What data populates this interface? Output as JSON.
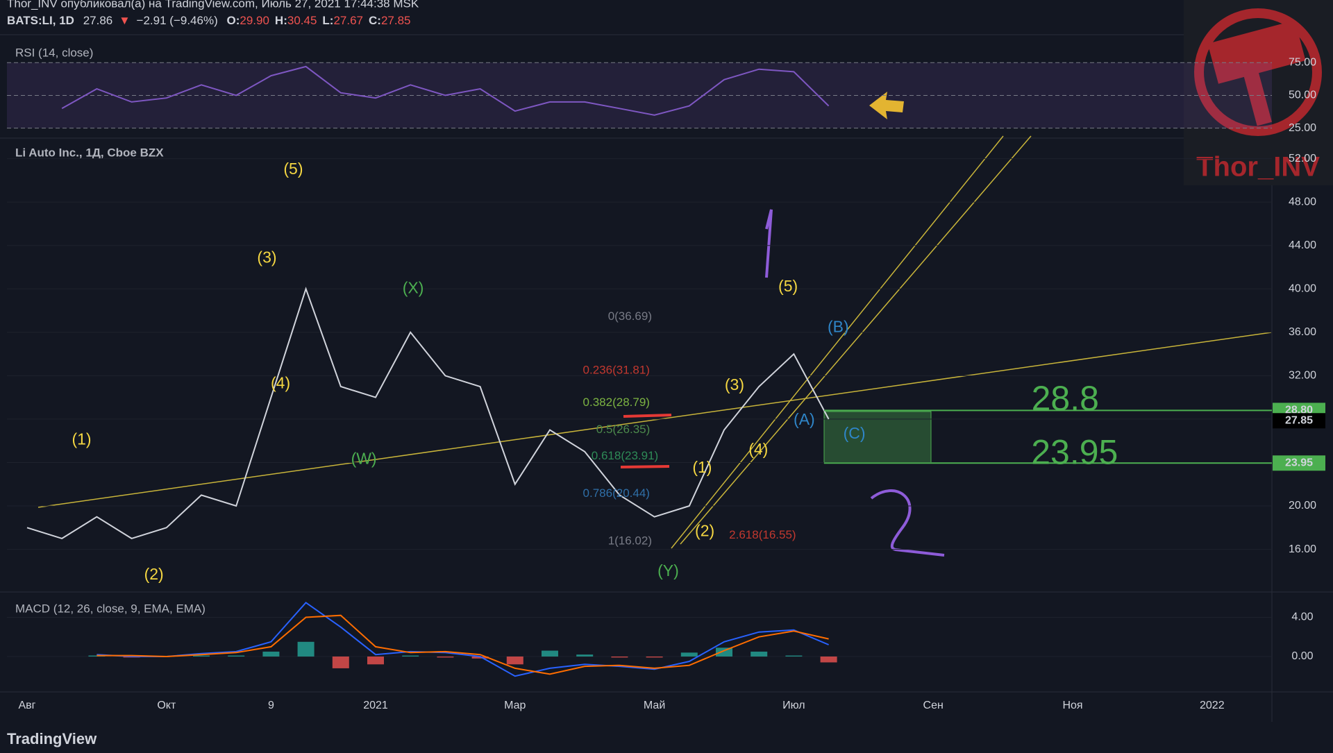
{
  "header": {
    "publisher": "Thor_INV опубликовал(а) на TradingView.com, Июль 27, 2021 17:44:38 MSK",
    "symbol": "BATS:LI, 1D",
    "last": "27.86",
    "arrow": "▼",
    "change": "−2.91 (−9.46%)",
    "ohlc": [
      {
        "label": "O:",
        "value": "29.90"
      },
      {
        "label": "H:",
        "value": "30.45"
      },
      {
        "label": "L:",
        "value": "27.67"
      },
      {
        "label": "C:",
        "value": "27.85"
      }
    ]
  },
  "watermark": "Thor_INV",
  "footer": "TradingView",
  "chart_data": [
    {
      "type": "line",
      "title": "RSI (14, close)",
      "ylim": [
        19,
        91
      ],
      "yticks": [
        {
          "value": 25,
          "label": "25.00"
        },
        {
          "value": 50,
          "label": "50.00"
        },
        {
          "value": 75,
          "label": "75.00"
        }
      ],
      "band": [
        25,
        75
      ],
      "series": [
        {
          "color": "#7e57c2",
          "values": [
            null,
            40,
            55,
            45,
            48,
            58,
            50,
            65,
            72,
            52,
            48,
            58,
            50,
            55,
            38,
            45,
            45,
            40,
            35,
            42,
            62,
            70,
            68,
            42,
            null,
            null,
            null,
            null,
            null,
            null,
            null,
            null,
            null,
            null,
            null,
            null
          ]
        }
      ]
    },
    {
      "type": "line",
      "title": "Li Auto Inc., 1Д, Cboe BZX",
      "color": "#d1d4dc",
      "categories": [
        "Авг",
        null,
        null,
        null,
        "Окт",
        null,
        null,
        "9",
        null,
        null,
        "2021",
        null,
        null,
        null,
        "Мар",
        null,
        null,
        null,
        "Май",
        null,
        null,
        null,
        "Июл",
        null,
        null,
        null,
        "Сен",
        null,
        null,
        null,
        "Ноя",
        null,
        null,
        null,
        "2022",
        null
      ],
      "values": [
        18,
        17,
        19,
        17,
        18,
        21,
        20,
        30,
        40,
        31,
        30,
        36,
        32,
        31,
        22,
        27,
        25,
        21,
        19,
        20,
        27,
        31,
        34,
        28,
        null,
        null,
        null,
        null,
        null,
        null,
        null,
        null,
        null,
        null,
        null,
        null
      ],
      "ylim": [
        12.2,
        53.7
      ],
      "yticks": [
        {
          "value": 16,
          "label": "16.00"
        },
        {
          "value": 20,
          "label": "20.00"
        },
        {
          "value": 24,
          "label": "24.00"
        },
        {
          "value": 28,
          "label": "28.00"
        },
        {
          "value": 32,
          "label": "32.00"
        },
        {
          "value": 36,
          "label": "36.00"
        },
        {
          "value": 40,
          "label": "40.00"
        },
        {
          "value": 44,
          "label": "44.00"
        },
        {
          "value": 48,
          "label": "48.00"
        },
        {
          "value": 52,
          "label": "52.00"
        }
      ],
      "price_levels": [
        {
          "value": 28.8,
          "label": "28.80",
          "color": "#4caf50"
        },
        {
          "value": 27.85,
          "label": "27.85",
          "color": "#000000"
        },
        {
          "value": 23.95,
          "label": "23.95",
          "color": "#4caf50"
        }
      ],
      "annotations": [
        {
          "text": "(1)",
          "color": "#f5d742"
        },
        {
          "text": "(2)",
          "color": "#f5d742"
        },
        {
          "text": "(3)",
          "color": "#f5d742"
        },
        {
          "text": "(4)",
          "color": "#f5d742"
        },
        {
          "text": "(5)",
          "color": "#f5d742"
        },
        {
          "text": "(X)",
          "color": "#4caf50"
        },
        {
          "text": "(W)",
          "color": "#4caf50"
        },
        {
          "text": "(Y)",
          "color": "#4caf50"
        },
        {
          "text": "(1)",
          "color": "#f5d742"
        },
        {
          "text": "(2)",
          "color": "#f5d742"
        },
        {
          "text": "(3)",
          "color": "#f5d742"
        },
        {
          "text": "(4)",
          "color": "#f5d742"
        },
        {
          "text": "(5)",
          "color": "#f5d742"
        },
        {
          "text": "(A)",
          "color": "#2f86c9"
        },
        {
          "text": "(B)",
          "color": "#2f86c9"
        },
        {
          "text": "(C)",
          "color": "#2f86c9"
        },
        {
          "text": "0(36.69)",
          "color": "#787b86"
        },
        {
          "text": "0.236(31.81)",
          "color": "#c2382f"
        },
        {
          "text": "0.382(28.79)",
          "color": "#7cb342"
        },
        {
          "text": "0.5(26.35)",
          "color": "#4c8a4c"
        },
        {
          "text": "0.618(23.91)",
          "color": "#2e8b57"
        },
        {
          "text": "0.786(20.44)",
          "color": "#2f6fa8"
        },
        {
          "text": "1(16.02)",
          "color": "#787b86"
        },
        {
          "text": "2.618(16.55)",
          "color": "#c2382f"
        },
        {
          "text": "28.8",
          "color": "#4caf50"
        },
        {
          "text": "23.95",
          "color": "#4caf50"
        }
      ]
    },
    {
      "type": "line",
      "title": "MACD (12, 26, close, 9, EMA, EMA)",
      "ylim": [
        -3.4,
        6.3
      ],
      "yticks": [
        {
          "value": 0,
          "label": "0.00"
        },
        {
          "value": 4,
          "label": "4.00"
        }
      ],
      "series": [
        {
          "kind": "histogram",
          "colors": [
            "#26a69a",
            "#ef5350"
          ],
          "values": [
            null,
            null,
            0.1,
            -0.1,
            0,
            0.1,
            0.1,
            0.5,
            1.5,
            -1.2,
            -0.8,
            0.1,
            -0.1,
            -0.2,
            -0.8,
            0.6,
            0.2,
            -0.1,
            -0.1,
            0.4,
            0.9,
            0.5,
            0.1,
            -0.6,
            null,
            null,
            null,
            null,
            null,
            null,
            null,
            null,
            null,
            null,
            null,
            null
          ]
        },
        {
          "color": "#2962ff",
          "values": [
            null,
            null,
            0.2,
            0,
            0,
            0.3,
            0.5,
            1.5,
            5.5,
            3,
            0.2,
            0.5,
            0.4,
            0,
            -2,
            -1.2,
            -0.8,
            -1,
            -1.3,
            -0.5,
            1.5,
            2.5,
            2.7,
            1.2,
            null,
            null,
            null,
            null,
            null,
            null,
            null,
            null,
            null,
            null,
            null,
            null
          ]
        },
        {
          "color": "#ff6d00",
          "values": [
            null,
            null,
            0.1,
            0.1,
            0,
            0.2,
            0.4,
            1,
            4,
            4.2,
            1,
            0.4,
            0.5,
            0.2,
            -1.2,
            -1.8,
            -1,
            -0.9,
            -1.2,
            -0.9,
            0.6,
            2,
            2.6,
            1.8,
            null,
            null,
            null,
            null,
            null,
            null,
            null,
            null,
            null,
            null,
            null,
            null
          ]
        }
      ]
    }
  ]
}
